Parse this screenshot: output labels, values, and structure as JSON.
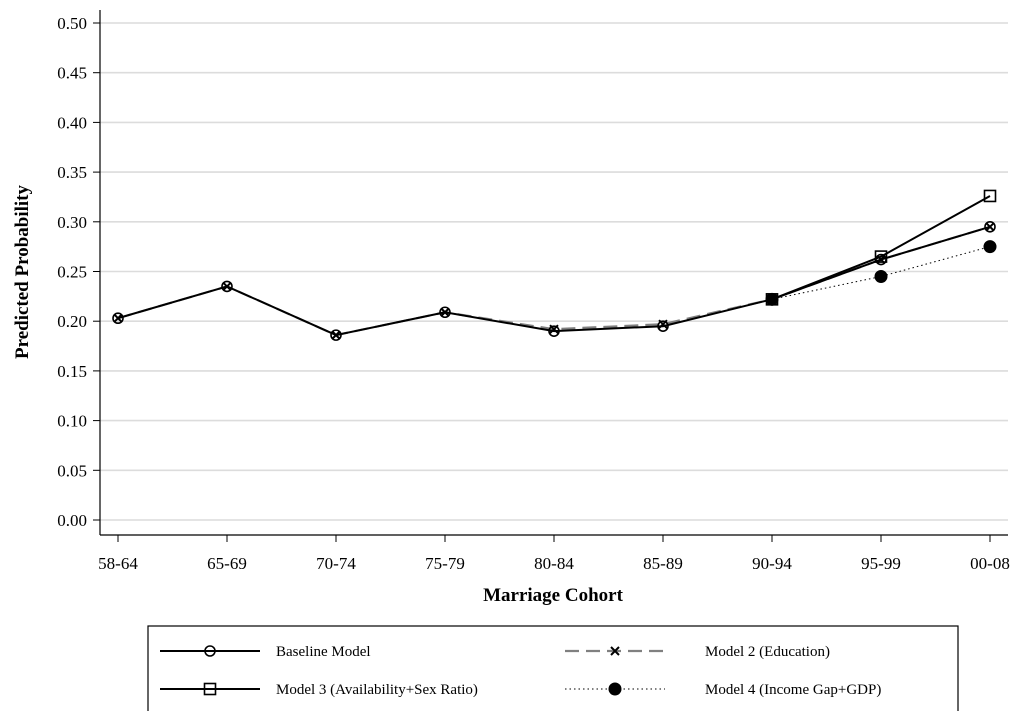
{
  "chart_data": {
    "type": "line",
    "title": "",
    "xlabel": "Marriage Cohort",
    "ylabel": "Predicted Probability",
    "categories": [
      "58-64",
      "65-69",
      "70-74",
      "75-79",
      "80-84",
      "85-89",
      "90-94",
      "95-99",
      "00-08"
    ],
    "yticks": [
      "0.00",
      "0.05",
      "0.10",
      "0.15",
      "0.20",
      "0.25",
      "0.30",
      "0.35",
      "0.40",
      "0.45",
      "0.50"
    ],
    "ylim": [
      0,
      0.5
    ],
    "grid": true,
    "legend_position": "bottom",
    "series": [
      {
        "name": "Baseline Model",
        "marker": "hollow-circle",
        "line": "solid",
        "color": "#000000",
        "values": [
          0.203,
          0.235,
          0.186,
          0.209,
          0.19,
          0.195,
          0.222,
          0.262,
          0.295
        ]
      },
      {
        "name": "Model 2 (Education)",
        "marker": "x",
        "line": "dashed",
        "color": "#808080",
        "values": [
          0.203,
          0.235,
          0.186,
          0.209,
          0.192,
          0.197,
          0.222,
          0.262,
          0.295
        ]
      },
      {
        "name": "Model 3 (Availability+Sex Ratio)",
        "marker": "hollow-square",
        "line": "solid",
        "color": "#000000",
        "values": [
          null,
          null,
          null,
          null,
          null,
          null,
          0.222,
          0.265,
          0.326
        ]
      },
      {
        "name": "Model 4 (Income Gap+GDP)",
        "marker": "filled-circle",
        "line": "dotted",
        "color": "#000000",
        "values": [
          null,
          null,
          null,
          null,
          null,
          null,
          0.222,
          0.245,
          0.275
        ]
      }
    ]
  }
}
